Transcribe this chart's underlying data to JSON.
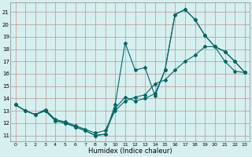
{
  "title": "",
  "xlabel": "Humidex (Indice chaleur)",
  "background_color": "#d6f0f0",
  "grid_color": "#c09090",
  "line_color": "#006666",
  "xlim": [
    -0.5,
    23.5
  ],
  "ylim": [
    10.5,
    21.8
  ],
  "yticks": [
    11,
    12,
    13,
    14,
    15,
    16,
    17,
    18,
    19,
    20,
    21
  ],
  "xticks": [
    0,
    1,
    2,
    3,
    4,
    5,
    6,
    7,
    8,
    9,
    10,
    11,
    12,
    13,
    14,
    15,
    16,
    17,
    18,
    19,
    20,
    21,
    22,
    23
  ],
  "curve1_x": [
    0,
    1,
    2,
    3,
    4,
    5,
    6,
    7,
    8,
    9,
    10,
    11,
    12,
    13,
    14,
    15,
    16,
    17,
    18,
    19,
    20,
    21,
    22,
    23
  ],
  "curve1_y": [
    13.5,
    13.0,
    12.7,
    13.0,
    12.2,
    12.0,
    11.7,
    11.4,
    11.0,
    11.1,
    13.5,
    18.5,
    16.3,
    16.5,
    14.2,
    16.3,
    20.8,
    21.2,
    20.4,
    19.1,
    18.2,
    17.8,
    17.0,
    16.1
  ],
  "curve2_x": [
    0,
    1,
    2,
    3,
    4,
    5,
    6,
    7,
    8,
    9,
    10,
    11,
    12,
    13,
    14,
    15,
    16,
    17,
    18,
    19,
    20,
    21,
    22,
    23
  ],
  "curve2_y": [
    13.5,
    13.0,
    12.7,
    13.0,
    12.2,
    12.0,
    11.7,
    11.4,
    11.0,
    11.1,
    13.2,
    14.1,
    13.8,
    14.0,
    14.4,
    16.3,
    20.8,
    21.2,
    20.4,
    19.1,
    18.2,
    17.8,
    17.0,
    16.1
  ],
  "curve3_x": [
    0,
    1,
    2,
    3,
    4,
    5,
    6,
    7,
    8,
    9,
    10,
    11,
    12,
    13,
    14,
    15,
    16,
    17,
    18,
    19,
    20,
    21,
    22,
    23
  ],
  "curve3_y": [
    13.5,
    13.0,
    12.7,
    13.1,
    12.3,
    12.1,
    11.8,
    11.5,
    11.2,
    11.4,
    13.0,
    13.8,
    14.1,
    14.3,
    15.2,
    15.5,
    16.3,
    17.0,
    17.5,
    18.2,
    18.2,
    17.0,
    16.2,
    16.1
  ]
}
